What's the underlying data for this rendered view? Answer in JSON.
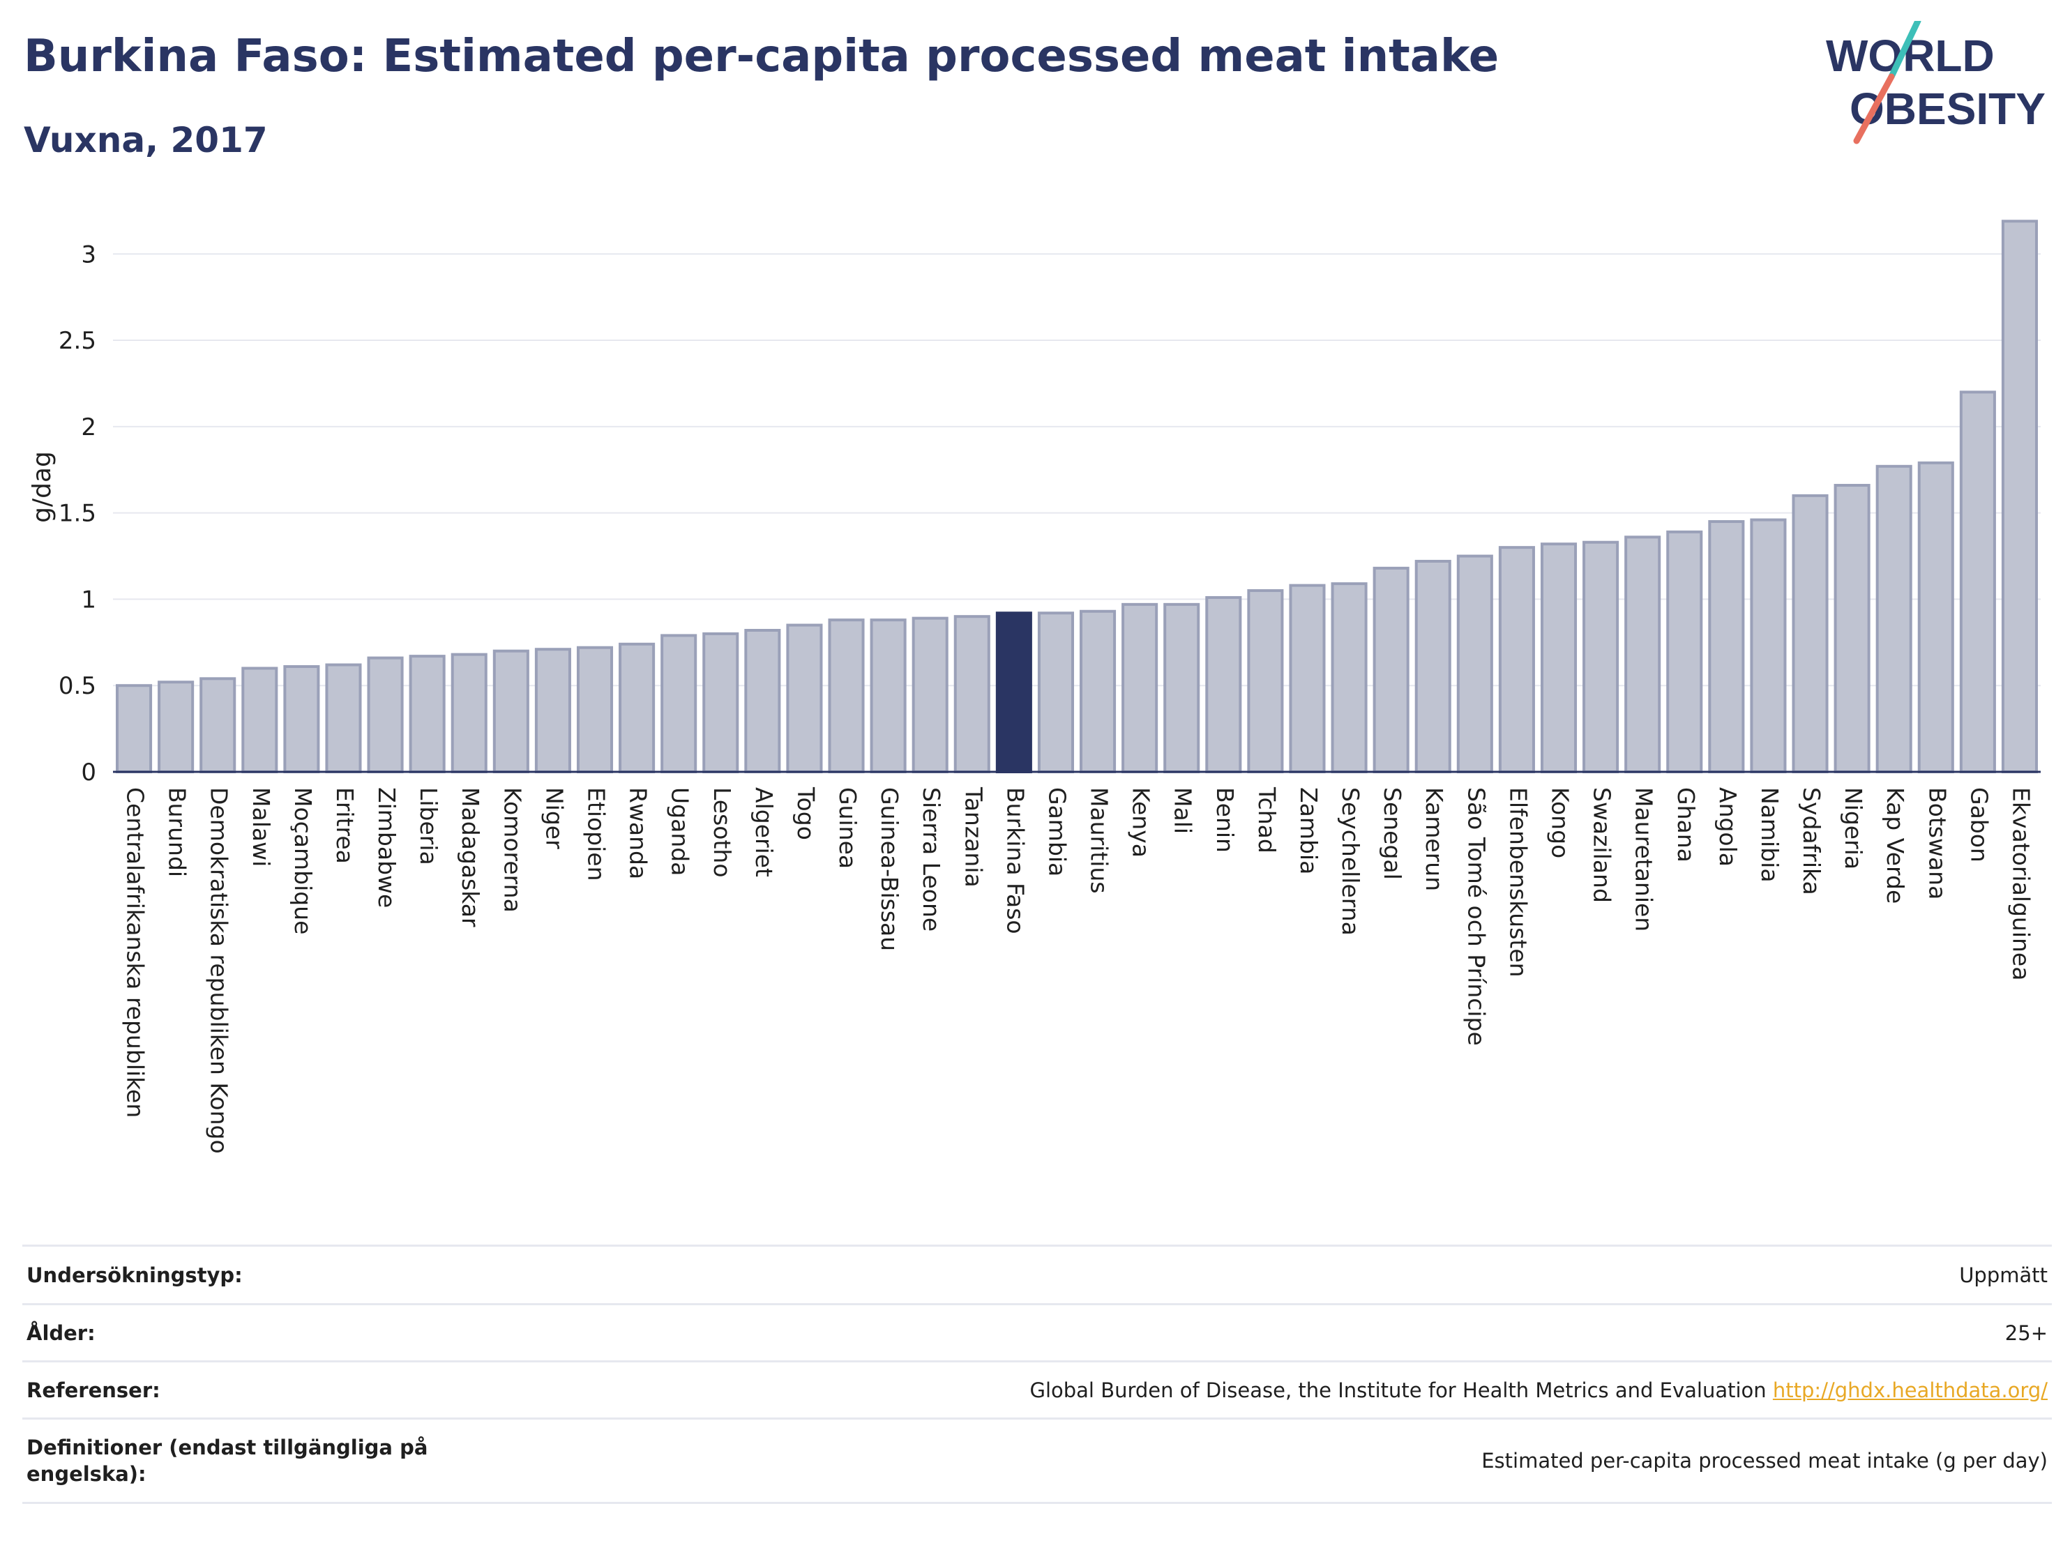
{
  "header": {
    "title": "Burkina Faso: Estimated per-capita processed meat intake",
    "subtitle": "Vuxna, 2017"
  },
  "logo": {
    "line1": "WORLD",
    "line2": "OBESITY",
    "text_color": "#2a3563",
    "slash_top_color": "#3dbfb8",
    "slash_bottom_color": "#e8705f"
  },
  "colors": {
    "bar": "#bfc3d1",
    "bar_border": "#9aa0b8",
    "highlight": "#2a3563",
    "grid": "#e6e8ef",
    "axis": "#2a3563"
  },
  "chart_data": {
    "type": "bar",
    "ylabel": "g/dag",
    "ylim": [
      0,
      3.3
    ],
    "yticks": [
      0,
      0.5,
      1,
      1.5,
      2,
      2.5,
      3
    ],
    "ytick_labels": [
      "0",
      "0.5",
      "1",
      "1.5",
      "2",
      "2.5",
      "3"
    ],
    "grid": true,
    "highlight": "Burkina Faso",
    "categories": [
      "Centralafrikanska republiken",
      "Burundi",
      "Demokratiska republiken Kongo",
      "Malawi",
      "Moçambique",
      "Eritrea",
      "Zimbabwe",
      "Liberia",
      "Madagaskar",
      "Komorerna",
      "Niger",
      "Etiopien",
      "Rwanda",
      "Uganda",
      "Lesotho",
      "Algeriet",
      "Togo",
      "Guinea",
      "Guinea-Bissau",
      "Sierra Leone",
      "Tanzania",
      "Burkina Faso",
      "Gambia",
      "Mauritius",
      "Kenya",
      "Mali",
      "Benin",
      "Tchad",
      "Zambia",
      "Seychellerna",
      "Senegal",
      "Kamerun",
      "São Tomé och Príncipe",
      "Elfenbenskusten",
      "Kongo",
      "Swaziland",
      "Mauretanien",
      "Ghana",
      "Angola",
      "Namibia",
      "Sydafrika",
      "Nigeria",
      "Kap Verde",
      "Botswana",
      "Gabon",
      "Ekvatorialguinea"
    ],
    "values": [
      0.5,
      0.52,
      0.54,
      0.6,
      0.61,
      0.62,
      0.66,
      0.67,
      0.68,
      0.7,
      0.71,
      0.72,
      0.74,
      0.79,
      0.8,
      0.82,
      0.85,
      0.88,
      0.88,
      0.89,
      0.9,
      0.92,
      0.92,
      0.93,
      0.97,
      0.97,
      1.01,
      1.05,
      1.08,
      1.09,
      1.18,
      1.22,
      1.25,
      1.3,
      1.32,
      1.33,
      1.36,
      1.39,
      1.45,
      1.46,
      1.6,
      1.66,
      1.77,
      1.79,
      2.2,
      3.19
    ]
  },
  "info": {
    "rows": [
      {
        "label": "Undersökningstyp:",
        "value": "Uppmätt"
      },
      {
        "label": "Ålder:",
        "value": "25+"
      },
      {
        "label": "Referenser:",
        "value": "Global Burden of Disease, the Institute for Health Metrics and Evaluation",
        "link": "http://ghdx.healthdata.org/"
      },
      {
        "label": "Definitioner (endast tillgängliga på engelska):",
        "value": "Estimated per-capita processed meat intake (g per day)"
      }
    ]
  }
}
